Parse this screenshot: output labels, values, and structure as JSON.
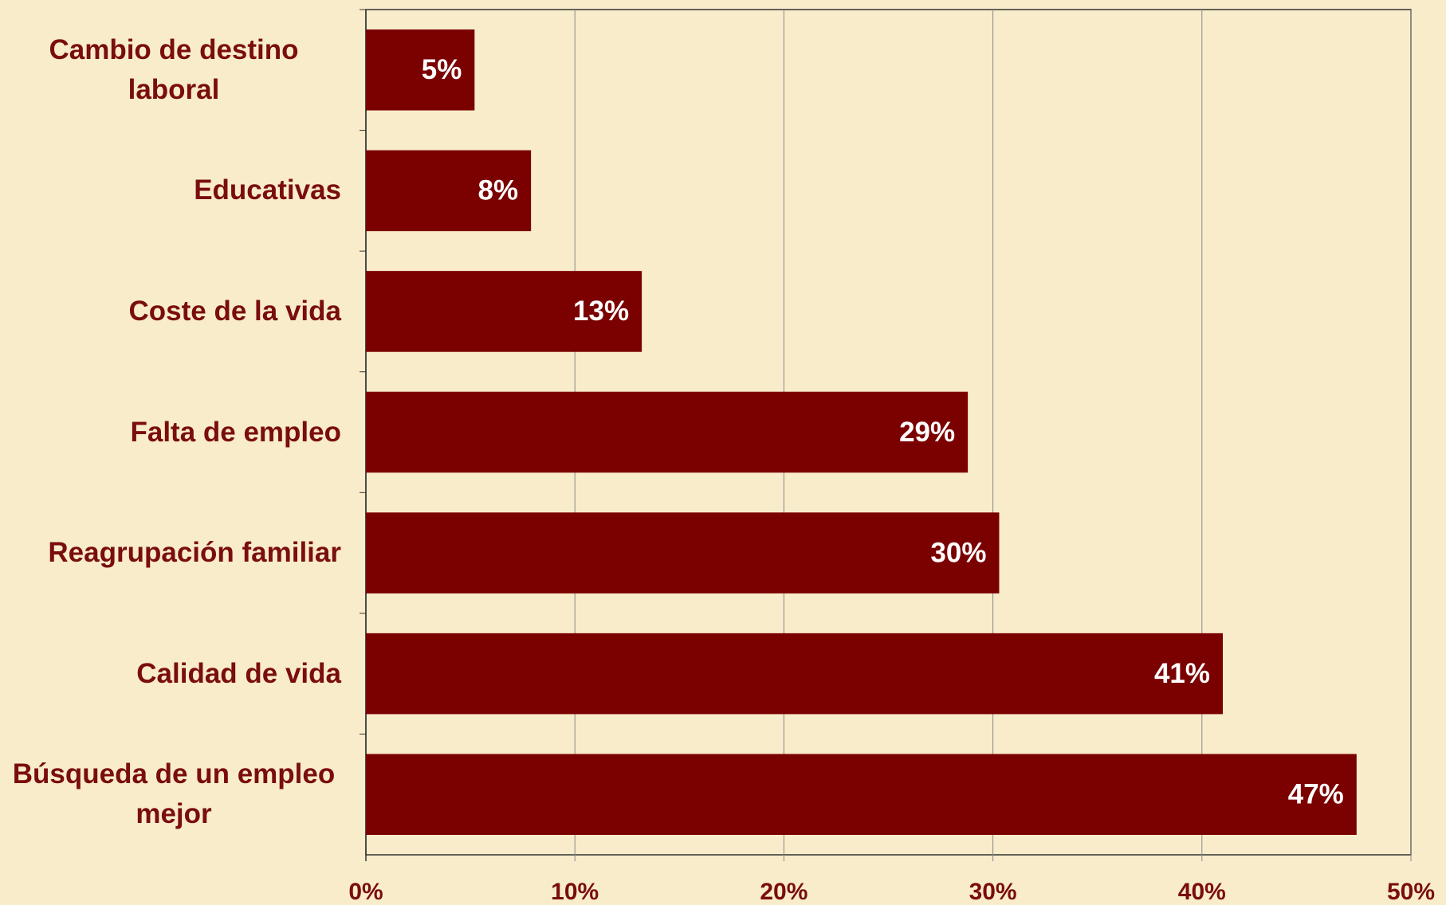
{
  "chart_data": {
    "type": "hbar",
    "categories": [
      "Cambio de destino laboral",
      "Educativas",
      "Coste de la vida",
      "Falta de empleo",
      "Reagrupación familiar",
      "Calidad de vida",
      "Búsqueda de un empleo mejor"
    ],
    "values": [
      5.2,
      7.9,
      13.2,
      28.8,
      30.3,
      41.0,
      47.4
    ],
    "value_labels": [
      "5%",
      "8%",
      "13%",
      "29%",
      "30%",
      "41%",
      "47%"
    ],
    "color": "#7b0000",
    "xlim": [
      0,
      50
    ],
    "xticks": [
      {
        "value": 0,
        "label": "0%"
      },
      {
        "value": 10,
        "label": "10%"
      },
      {
        "value": 20,
        "label": "20%"
      },
      {
        "value": 30,
        "label": "30%"
      },
      {
        "value": 40,
        "label": "40%"
      },
      {
        "value": 50,
        "label": "50%"
      }
    ],
    "grid": true
  }
}
